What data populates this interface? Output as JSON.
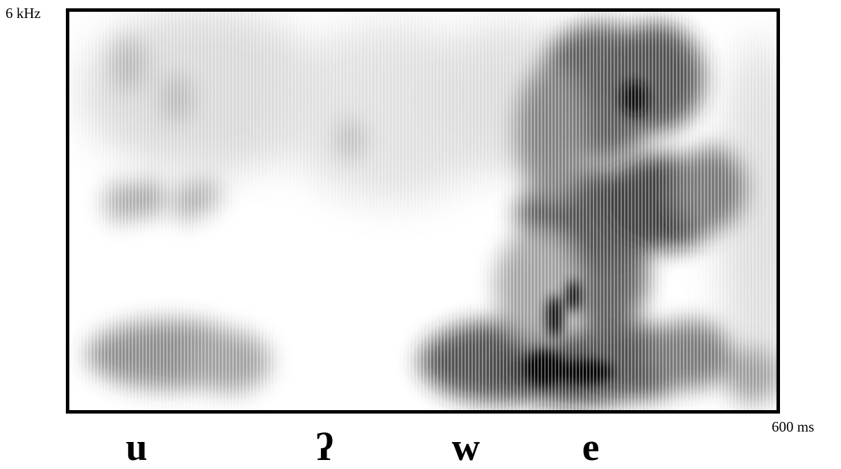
{
  "axis": {
    "frequency_max_label": "6 kHz",
    "time_max_label": "600 ms"
  },
  "segments": [
    {
      "label": "u"
    },
    {
      "label": "ʔ"
    },
    {
      "label": "w"
    },
    {
      "label": "e"
    }
  ],
  "colors": {
    "frame": "#000000",
    "background": "#ffffff",
    "ink": "#000000"
  }
}
